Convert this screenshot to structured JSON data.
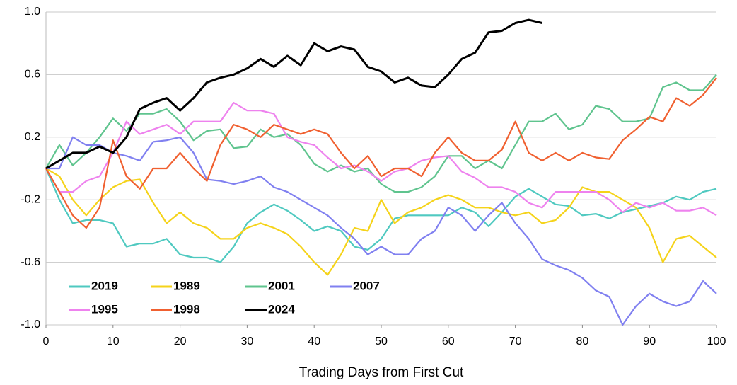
{
  "chart_data": {
    "type": "line",
    "x_label": "Trading Days from First Cut",
    "x": [
      0,
      2,
      4,
      6,
      8,
      10,
      12,
      14,
      16,
      18,
      20,
      22,
      24,
      26,
      28,
      30,
      32,
      34,
      36,
      38,
      40,
      42,
      44,
      46,
      48,
      50,
      52,
      54,
      56,
      58,
      60,
      62,
      64,
      66,
      68,
      70,
      72,
      74,
      76,
      78,
      80,
      82,
      84,
      86,
      88,
      90,
      92,
      94,
      96,
      98,
      100
    ],
    "xlim": [
      0,
      100
    ],
    "xticks": [
      0,
      10,
      20,
      30,
      40,
      50,
      60,
      70,
      80,
      90,
      100
    ],
    "ylim": [
      -1,
      1
    ],
    "yticks": [
      {
        "value": -1,
        "label": "-1.0"
      },
      -0.6,
      -0.2,
      0.2,
      0.6,
      {
        "value": 1,
        "label": "1.0"
      }
    ],
    "grid": true,
    "legend": "lower left",
    "series": [
      {
        "name": "2019",
        "color": "#4fc9c0",
        "values": [
          0,
          -0.2,
          -0.35,
          -0.33,
          -0.33,
          -0.35,
          -0.5,
          -0.48,
          -0.48,
          -0.45,
          -0.55,
          -0.57,
          -0.57,
          -0.6,
          -0.5,
          -0.35,
          -0.28,
          -0.23,
          -0.27,
          -0.33,
          -0.4,
          -0.37,
          -0.4,
          -0.5,
          -0.52,
          -0.45,
          -0.32,
          -0.3,
          -0.3,
          -0.3,
          -0.3,
          -0.25,
          -0.28,
          -0.37,
          -0.28,
          -0.18,
          -0.13,
          -0.18,
          -0.23,
          -0.24,
          -0.3,
          -0.29,
          -0.32,
          -0.28,
          -0.26,
          -0.24,
          -0.22,
          -0.18,
          -0.2,
          -0.15,
          -0.13
        ]
      },
      {
        "name": "1989",
        "color": "#f5d31a",
        "values": [
          0,
          -0.05,
          -0.2,
          -0.3,
          -0.2,
          -0.12,
          -0.08,
          -0.07,
          -0.22,
          -0.35,
          -0.28,
          -0.35,
          -0.38,
          -0.45,
          -0.45,
          -0.38,
          -0.35,
          -0.38,
          -0.42,
          -0.5,
          -0.6,
          -0.68,
          -0.55,
          -0.38,
          -0.4,
          -0.2,
          -0.35,
          -0.28,
          -0.25,
          -0.2,
          -0.17,
          -0.2,
          -0.25,
          -0.25,
          -0.28,
          -0.3,
          -0.28,
          -0.35,
          -0.33,
          -0.25,
          -0.12,
          -0.15,
          -0.15,
          -0.2,
          -0.25,
          -0.38,
          -0.6,
          -0.45,
          -0.43,
          -0.5,
          -0.57
        ]
      },
      {
        "name": "2001",
        "color": "#5fc48e",
        "values": [
          0,
          0.15,
          0.02,
          0.1,
          0.2,
          0.32,
          0.24,
          0.35,
          0.35,
          0.38,
          0.3,
          0.18,
          0.24,
          0.25,
          0.13,
          0.14,
          0.25,
          0.2,
          0.22,
          0.15,
          0.03,
          -0.02,
          0.02,
          -0.02,
          0,
          -0.1,
          -0.15,
          -0.15,
          -0.12,
          -0.05,
          0.08,
          0.08,
          0,
          0.05,
          0,
          0.15,
          0.3,
          0.3,
          0.35,
          0.25,
          0.28,
          0.4,
          0.38,
          0.3,
          0.3,
          0.32,
          0.52,
          0.55,
          0.5,
          0.5,
          0.6
        ]
      },
      {
        "name": "2007",
        "color": "#8080f0",
        "values": [
          0,
          0,
          0.2,
          0.15,
          0.15,
          0.1,
          0.08,
          0.05,
          0.17,
          0.18,
          0.2,
          0.1,
          -0.07,
          -0.08,
          -0.1,
          -0.08,
          -0.05,
          -0.12,
          -0.15,
          -0.2,
          -0.25,
          -0.3,
          -0.38,
          -0.45,
          -0.55,
          -0.5,
          -0.55,
          -0.55,
          -0.45,
          -0.4,
          -0.25,
          -0.3,
          -0.4,
          -0.3,
          -0.22,
          -0.35,
          -0.45,
          -0.58,
          -0.62,
          -0.65,
          -0.7,
          -0.78,
          -0.82,
          -1,
          -0.88,
          -0.8,
          -0.85,
          -0.88,
          -0.85,
          -0.72,
          -0.8
        ]
      },
      {
        "name": "1995",
        "color": "#ee82ee",
        "values": [
          0,
          -0.15,
          -0.15,
          -0.08,
          -0.05,
          0.1,
          0.3,
          0.22,
          0.25,
          0.28,
          0.22,
          0.3,
          0.3,
          0.3,
          0.42,
          0.37,
          0.37,
          0.35,
          0.2,
          0.17,
          0.15,
          0.07,
          0,
          0.02,
          -0.02,
          -0.08,
          -0.02,
          0,
          0.05,
          0.07,
          0.08,
          -0.02,
          -0.06,
          -0.12,
          -0.12,
          -0.15,
          -0.22,
          -0.25,
          -0.15,
          -0.15,
          -0.15,
          -0.15,
          -0.2,
          -0.28,
          -0.22,
          -0.25,
          -0.22,
          -0.27,
          -0.27,
          -0.25,
          -0.3
        ]
      },
      {
        "name": "1998",
        "color": "#f06030",
        "values": [
          0,
          -0.15,
          -0.3,
          -0.38,
          -0.25,
          0.18,
          -0.05,
          -0.13,
          0,
          0,
          0.1,
          0,
          -0.08,
          0.15,
          0.28,
          0.25,
          0.2,
          0.28,
          0.25,
          0.22,
          0.25,
          0.22,
          0.1,
          0,
          0.08,
          -0.05,
          0,
          0,
          -0.05,
          0.1,
          0.2,
          0.1,
          0.05,
          0.05,
          0.12,
          0.3,
          0.1,
          0.05,
          0.1,
          0.05,
          0.1,
          0.07,
          0.06,
          0.18,
          0.25,
          0.33,
          0.3,
          0.45,
          0.4,
          0.47,
          0.58
        ]
      },
      {
        "name": "2024",
        "color": "#000000",
        "values": [
          0,
          0.05,
          0.1,
          0.1,
          0.14,
          0.1,
          0.2,
          0.38,
          0.42,
          0.45,
          0.37,
          0.45,
          0.55,
          0.58,
          0.6,
          0.64,
          0.7,
          0.65,
          0.72,
          0.66,
          0.8,
          0.75,
          0.78,
          0.76,
          0.65,
          0.62,
          0.55,
          0.58,
          0.53,
          0.52,
          0.6,
          0.7,
          0.74,
          0.87,
          0.88,
          0.93,
          0.95,
          0.93,
          null,
          null,
          null,
          null,
          null,
          null,
          null,
          null,
          null,
          null,
          null,
          null,
          null
        ]
      }
    ]
  }
}
